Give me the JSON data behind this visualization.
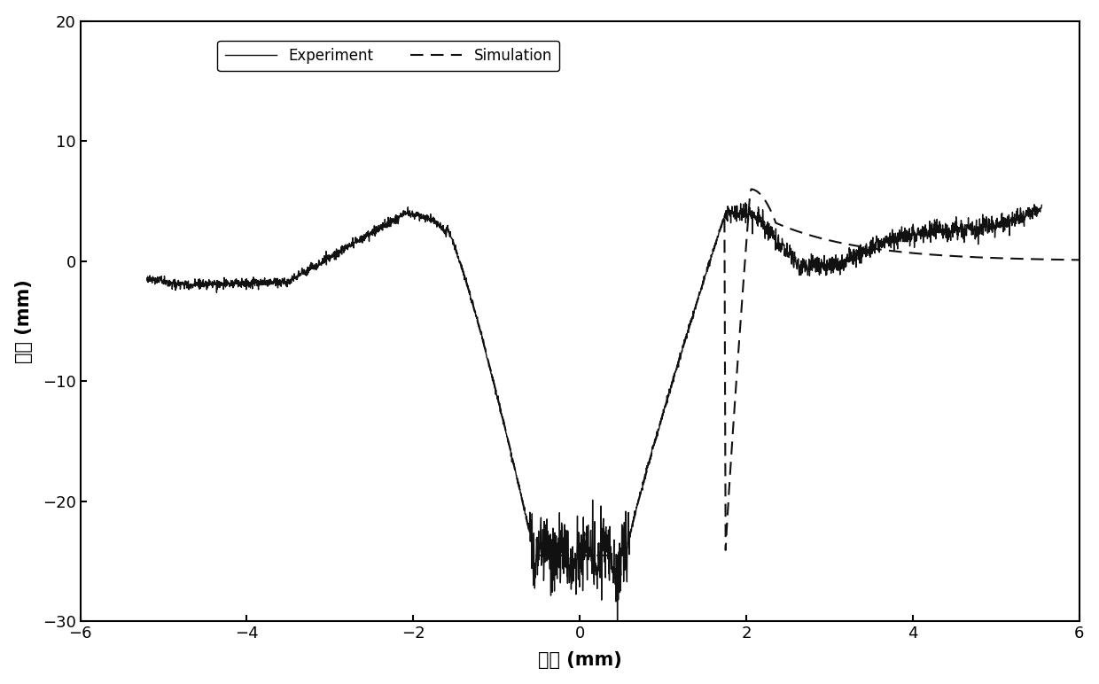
{
  "xlim": [
    -6,
    6
  ],
  "ylim": [
    -30,
    20
  ],
  "xticks": [
    -6,
    -4,
    -2,
    0,
    2,
    4,
    6
  ],
  "yticks": [
    -30,
    -20,
    -10,
    0,
    10,
    20
  ],
  "xlabel": "径向 (mm)",
  "ylabel": "位移 (mm)",
  "legend_experiment": "Experiment",
  "legend_simulation": "Simulation",
  "line_color": "#111111",
  "background_color": "#ffffff",
  "figure_background": "#ffffff"
}
